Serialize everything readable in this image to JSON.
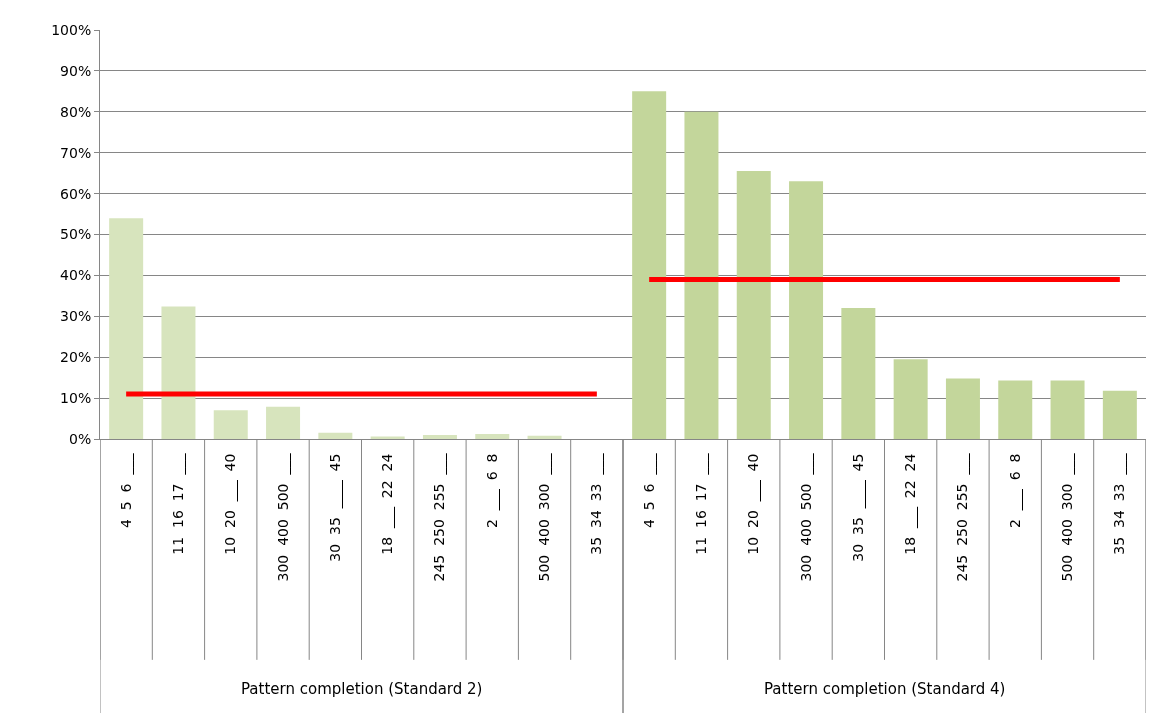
{
  "chart_data": {
    "type": "bar",
    "categories": [
      "4  5  6  ___",
      "11  16  17  ___",
      "10  20  ___  40",
      "300  400  500  ___",
      "30  35  ____  45",
      "18  ___  22  24",
      "245  250  255  ___",
      "2  ___  6  8",
      "500  400  300  ___",
      "35  34  33  ___",
      "4  5  6  ___",
      "11  16  17  ___",
      "10  20  ___  40",
      "300  400  500  ___",
      "30  35  ____  45",
      "18  ___  22  24",
      "245  250  255  ___",
      "2  ___  6  8",
      "500  400  300  ___",
      "35  34  33  ___"
    ],
    "series": [
      {
        "colors": [
          "#d7e4bd",
          "#d7e4bd",
          "#d7e4bd",
          "#d7e4bd",
          "#d7e4bd",
          "#d7e4bd",
          "#d7e4bd",
          "#d7e4bd",
          "#d7e4bd",
          "#d7e4bd",
          "#c3d69b",
          "#c3d69b",
          "#c3d69b",
          "#c3d69b",
          "#c3d69b",
          "#c3d69b",
          "#c3d69b",
          "#c3d69b",
          "#c3d69b",
          "#c3d69b"
        ],
        "values": [
          54,
          32.4,
          7,
          7.9,
          1.5,
          0.6,
          1,
          1.2,
          0.8,
          0,
          85,
          80,
          65.5,
          63,
          32,
          19.5,
          14.8,
          14.3,
          14.3,
          11.8
        ]
      },
      {
        "type": "line",
        "color": "#ff0000",
        "values": [
          11,
          11,
          11,
          11,
          11,
          11,
          11,
          11,
          11,
          11,
          null,
          null,
          null,
          null,
          null,
          null,
          null,
          null,
          null,
          null
        ]
      },
      {
        "type": "line",
        "color": "#ff0000",
        "values": [
          null,
          null,
          null,
          null,
          null,
          null,
          null,
          null,
          null,
          null,
          39,
          39,
          39,
          39,
          39,
          39,
          39,
          39,
          39,
          39
        ]
      }
    ],
    "annotations": [
      "Pattern completion (Standard 2)",
      "Pattern completion (Standard 4)"
    ],
    "ylim": [
      0,
      100
    ],
    "yticks": [
      {
        "value": 0,
        "label": "0%"
      },
      {
        "value": 10,
        "label": "10%"
      },
      {
        "value": 20,
        "label": "20%"
      },
      {
        "value": 30,
        "label": "30%"
      },
      {
        "value": 40,
        "label": "40%"
      },
      {
        "value": 50,
        "label": "50%"
      },
      {
        "value": 60,
        "label": "60%"
      },
      {
        "value": 70,
        "label": "70%"
      },
      {
        "value": 80,
        "label": "80%"
      },
      {
        "value": 90,
        "label": "90%"
      },
      {
        "value": 100,
        "label": "100%"
      }
    ],
    "grid": "y",
    "marker": "none"
  }
}
